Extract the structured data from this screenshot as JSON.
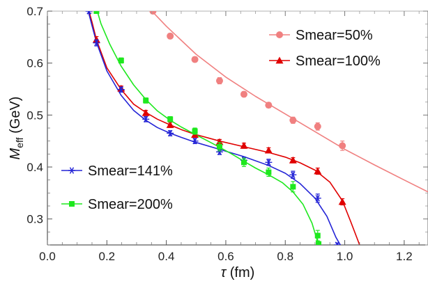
{
  "chart_data": {
    "type": "scatter",
    "xlabel": {
      "main": "τ",
      "unit": " (fm)"
    },
    "ylabel": {
      "main": "M",
      "sub": "eff",
      "unit": " (GeV)"
    },
    "xlim": [
      0,
      1.28
    ],
    "ylim": [
      0.25,
      0.7
    ],
    "xticks": [
      0.0,
      0.2,
      0.4,
      0.6,
      0.8,
      1.0,
      1.2
    ],
    "xtick_labels": [
      "0.0",
      "0.2",
      "0.4",
      "0.6",
      "0.8",
      "1.0",
      "1.2"
    ],
    "yticks": [
      0.3,
      0.4,
      0.5,
      0.6,
      0.7
    ],
    "ytick_labels": [
      "0.3",
      "0.4",
      "0.5",
      "0.6",
      "0.7"
    ],
    "grid": false,
    "legends": [
      {
        "position": "top-right",
        "entries": [
          0,
          1
        ]
      },
      {
        "position": "bottom-left",
        "entries": [
          2,
          3
        ]
      }
    ],
    "series": [
      {
        "name": "Smear=50%",
        "color": "#f08080",
        "marker": "circle",
        "points": [
          {
            "x": 0.355,
            "y": 0.7,
            "err": 0.005
          },
          {
            "x": 0.413,
            "y": 0.652,
            "err": 0.005
          },
          {
            "x": 0.496,
            "y": 0.607,
            "err": 0.005
          },
          {
            "x": 0.579,
            "y": 0.566,
            "err": 0.006
          },
          {
            "x": 0.661,
            "y": 0.54,
            "err": 0.005
          },
          {
            "x": 0.744,
            "y": 0.519,
            "err": 0.005
          },
          {
            "x": 0.826,
            "y": 0.49,
            "err": 0.006
          },
          {
            "x": 0.909,
            "y": 0.478,
            "err": 0.007
          },
          {
            "x": 0.992,
            "y": 0.441,
            "err": 0.009
          }
        ],
        "fit": [
          {
            "x": 0.325,
            "y": 0.716
          },
          {
            "x": 0.4,
            "y": 0.671
          },
          {
            "x": 0.5,
            "y": 0.617
          },
          {
            "x": 0.6,
            "y": 0.573
          },
          {
            "x": 0.7,
            "y": 0.536
          },
          {
            "x": 0.8,
            "y": 0.502
          },
          {
            "x": 0.9,
            "y": 0.468
          },
          {
            "x": 1.0,
            "y": 0.434
          },
          {
            "x": 1.1,
            "y": 0.404
          },
          {
            "x": 1.2,
            "y": 0.375
          },
          {
            "x": 1.28,
            "y": 0.352
          }
        ]
      },
      {
        "name": "Smear=100%",
        "color": "#e00000",
        "marker": "triangle",
        "points": [
          {
            "x": 0.165,
            "y": 0.645,
            "err": 0.006
          },
          {
            "x": 0.248,
            "y": 0.551,
            "err": 0.005
          },
          {
            "x": 0.331,
            "y": 0.504,
            "err": 0.005
          },
          {
            "x": 0.413,
            "y": 0.481,
            "err": 0.005
          },
          {
            "x": 0.496,
            "y": 0.462,
            "err": 0.005
          },
          {
            "x": 0.579,
            "y": 0.448,
            "err": 0.005
          },
          {
            "x": 0.661,
            "y": 0.441,
            "err": 0.005
          },
          {
            "x": 0.744,
            "y": 0.432,
            "err": 0.005
          },
          {
            "x": 0.826,
            "y": 0.413,
            "err": 0.005
          },
          {
            "x": 0.909,
            "y": 0.392,
            "err": 0.006
          },
          {
            "x": 0.992,
            "y": 0.333,
            "err": 0.006
          }
        ],
        "fit": [
          {
            "x": 0.14,
            "y": 0.7
          },
          {
            "x": 0.15,
            "y": 0.679
          },
          {
            "x": 0.165,
            "y": 0.645
          },
          {
            "x": 0.2,
            "y": 0.591
          },
          {
            "x": 0.248,
            "y": 0.549
          },
          {
            "x": 0.29,
            "y": 0.521
          },
          {
            "x": 0.331,
            "y": 0.505
          },
          {
            "x": 0.37,
            "y": 0.492
          },
          {
            "x": 0.413,
            "y": 0.481
          },
          {
            "x": 0.45,
            "y": 0.472
          },
          {
            "x": 0.496,
            "y": 0.463
          },
          {
            "x": 0.579,
            "y": 0.45
          },
          {
            "x": 0.661,
            "y": 0.439
          },
          {
            "x": 0.744,
            "y": 0.428
          },
          {
            "x": 0.8,
            "y": 0.419
          },
          {
            "x": 0.85,
            "y": 0.408
          },
          {
            "x": 0.9,
            "y": 0.394
          },
          {
            "x": 0.95,
            "y": 0.371
          },
          {
            "x": 0.992,
            "y": 0.335
          },
          {
            "x": 1.02,
            "y": 0.295
          },
          {
            "x": 1.05,
            "y": 0.25
          }
        ]
      },
      {
        "name": "Smear=141%",
        "color": "#2424d6",
        "marker": "asterisk",
        "points": [
          {
            "x": 0.14,
            "y": 0.7,
            "err": 0.004
          },
          {
            "x": 0.165,
            "y": 0.639,
            "err": 0.006
          },
          {
            "x": 0.248,
            "y": 0.549,
            "err": 0.005
          },
          {
            "x": 0.331,
            "y": 0.492,
            "err": 0.005
          },
          {
            "x": 0.413,
            "y": 0.465,
            "err": 0.005
          },
          {
            "x": 0.496,
            "y": 0.45,
            "err": 0.005
          },
          {
            "x": 0.579,
            "y": 0.429,
            "err": 0.005
          },
          {
            "x": 0.661,
            "y": 0.413,
            "err": 0.006
          },
          {
            "x": 0.744,
            "y": 0.409,
            "err": 0.006
          },
          {
            "x": 0.826,
            "y": 0.385,
            "err": 0.007
          },
          {
            "x": 0.909,
            "y": 0.34,
            "err": 0.008
          },
          {
            "x": 0.975,
            "y": 0.25,
            "err": 0.004
          }
        ],
        "fit": [
          {
            "x": 0.135,
            "y": 0.705
          },
          {
            "x": 0.15,
            "y": 0.672
          },
          {
            "x": 0.165,
            "y": 0.64
          },
          {
            "x": 0.2,
            "y": 0.585
          },
          {
            "x": 0.248,
            "y": 0.538
          },
          {
            "x": 0.29,
            "y": 0.509
          },
          {
            "x": 0.331,
            "y": 0.49
          },
          {
            "x": 0.37,
            "y": 0.476
          },
          {
            "x": 0.413,
            "y": 0.465
          },
          {
            "x": 0.45,
            "y": 0.457
          },
          {
            "x": 0.496,
            "y": 0.448
          },
          {
            "x": 0.579,
            "y": 0.434
          },
          {
            "x": 0.661,
            "y": 0.42
          },
          {
            "x": 0.744,
            "y": 0.403
          },
          {
            "x": 0.8,
            "y": 0.388
          },
          {
            "x": 0.85,
            "y": 0.368
          },
          {
            "x": 0.9,
            "y": 0.34
          },
          {
            "x": 0.94,
            "y": 0.305
          },
          {
            "x": 0.97,
            "y": 0.265
          },
          {
            "x": 0.985,
            "y": 0.25
          }
        ]
      },
      {
        "name": "Smear=200%",
        "color": "#1ee81e",
        "marker": "square",
        "points": [
          {
            "x": 0.165,
            "y": 0.7,
            "err": 0.004
          },
          {
            "x": 0.248,
            "y": 0.605,
            "err": 0.005
          },
          {
            "x": 0.331,
            "y": 0.528,
            "err": 0.005
          },
          {
            "x": 0.413,
            "y": 0.492,
            "err": 0.005
          },
          {
            "x": 0.496,
            "y": 0.469,
            "err": 0.006
          },
          {
            "x": 0.579,
            "y": 0.439,
            "err": 0.008
          },
          {
            "x": 0.661,
            "y": 0.409,
            "err": 0.008
          },
          {
            "x": 0.744,
            "y": 0.39,
            "err": 0.008
          },
          {
            "x": 0.826,
            "y": 0.362,
            "err": 0.01
          },
          {
            "x": 0.909,
            "y": 0.268,
            "err": 0.01
          },
          {
            "x": 0.912,
            "y": 0.252,
            "err": 0.004
          }
        ],
        "fit": [
          {
            "x": 0.16,
            "y": 0.715
          },
          {
            "x": 0.18,
            "y": 0.676
          },
          {
            "x": 0.21,
            "y": 0.636
          },
          {
            "x": 0.248,
            "y": 0.594
          },
          {
            "x": 0.29,
            "y": 0.558
          },
          {
            "x": 0.331,
            "y": 0.53
          },
          {
            "x": 0.37,
            "y": 0.508
          },
          {
            "x": 0.413,
            "y": 0.49
          },
          {
            "x": 0.45,
            "y": 0.477
          },
          {
            "x": 0.496,
            "y": 0.463
          },
          {
            "x": 0.54,
            "y": 0.45
          },
          {
            "x": 0.579,
            "y": 0.438
          },
          {
            "x": 0.62,
            "y": 0.425
          },
          {
            "x": 0.661,
            "y": 0.411
          },
          {
            "x": 0.7,
            "y": 0.398
          },
          {
            "x": 0.744,
            "y": 0.385
          },
          {
            "x": 0.79,
            "y": 0.37
          },
          {
            "x": 0.826,
            "y": 0.352
          },
          {
            "x": 0.86,
            "y": 0.328
          },
          {
            "x": 0.89,
            "y": 0.292
          },
          {
            "x": 0.912,
            "y": 0.25
          }
        ]
      }
    ]
  }
}
